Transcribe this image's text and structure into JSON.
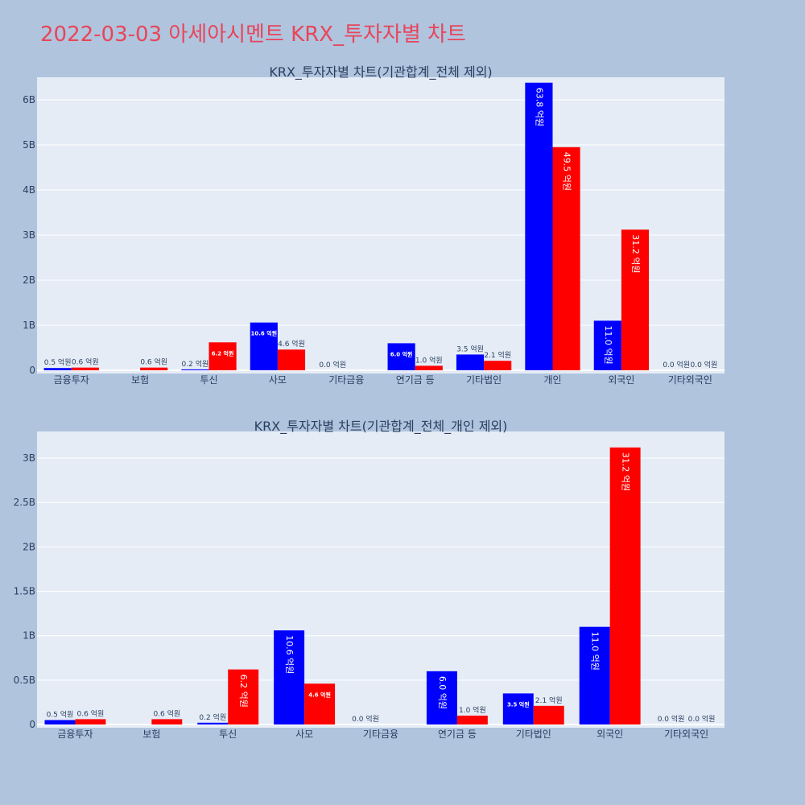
{
  "page": {
    "title": "2022-03-03 아세아시멘트 KRX_투자자별 차트"
  },
  "colors": {
    "page_bg": "#b0c4de",
    "plot_bg": "#e5ecf6",
    "grid": "#ffffff",
    "title": "#e8455a",
    "text": "#2a3f5f",
    "buy": "#0000ff",
    "sell": "#ff0000"
  },
  "chart_data": [
    {
      "type": "bar",
      "title": "KRX_투자자별 차트(기관합계_전체 제외)",
      "categories": [
        "금융투자",
        "보험",
        "투신",
        "사모",
        "기타금융",
        "연기금 등",
        "기타법인",
        "개인",
        "외국인",
        "기타외국인"
      ],
      "series": [
        {
          "color": "#0000ff",
          "values": [
            0.05,
            0,
            0.02,
            1.06,
            0,
            0.6,
            0.35,
            6.38,
            1.1,
            0
          ],
          "labels": [
            "0.5 억원",
            "",
            "0.2 억원",
            "10.6 억원",
            "0.0 억원",
            "6.0 억원",
            "3.5 억원",
            "63.8 억원",
            "11.0 억원",
            "0.0 억원"
          ]
        },
        {
          "color": "#ff0000",
          "values": [
            0.06,
            0.06,
            0.62,
            0.46,
            0,
            0.1,
            0.21,
            4.95,
            3.12,
            0
          ],
          "labels": [
            "0.6 억원",
            "0.6 억원",
            "6.2 억원",
            "4.6 억원",
            "",
            "1.0 억원",
            "2.1 억원",
            "49.5 억원",
            "31.2 억원",
            "0.0 억원"
          ]
        }
      ],
      "unit": "B",
      "ylim": [
        0,
        6.5
      ],
      "yticks": [
        0,
        1,
        2,
        3,
        4,
        5,
        6
      ],
      "ytick_labels": [
        "0",
        "1B",
        "2B",
        "3B",
        "4B",
        "5B",
        "6B"
      ],
      "grid": true,
      "legend": "none"
    },
    {
      "type": "bar",
      "title": "KRX_투자자별 차트(기관합계_전체_개인 제외)",
      "categories": [
        "금융투자",
        "보험",
        "투신",
        "사모",
        "기타금융",
        "연기금 등",
        "기타법인",
        "외국인",
        "기타외국인"
      ],
      "series": [
        {
          "color": "#0000ff",
          "values": [
            0.05,
            0,
            0.02,
            1.06,
            0,
            0.6,
            0.35,
            1.1,
            0
          ],
          "labels": [
            "0.5 억원",
            "",
            "0.2 억원",
            "10.6 억원",
            "0.0 억원",
            "6.0 억원",
            "3.5 억원",
            "11.0 억원",
            "0.0 억원"
          ]
        },
        {
          "color": "#ff0000",
          "values": [
            0.06,
            0.06,
            0.62,
            0.46,
            0,
            0.1,
            0.21,
            3.12,
            0
          ],
          "labels": [
            "0.6 억원",
            "0.6 억원",
            "6.2 억원",
            "4.6 억원",
            "",
            "1.0 억원",
            "2.1 억원",
            "31.2 억원",
            "0.0 억원"
          ]
        }
      ],
      "unit": "B",
      "ylim": [
        0,
        3.3
      ],
      "yticks": [
        0,
        0.5,
        1,
        1.5,
        2,
        2.5,
        3
      ],
      "ytick_labels": [
        "0",
        "0.5B",
        "1B",
        "1.5B",
        "2B",
        "2.5B",
        "3B"
      ],
      "grid": true,
      "legend": "none"
    }
  ]
}
